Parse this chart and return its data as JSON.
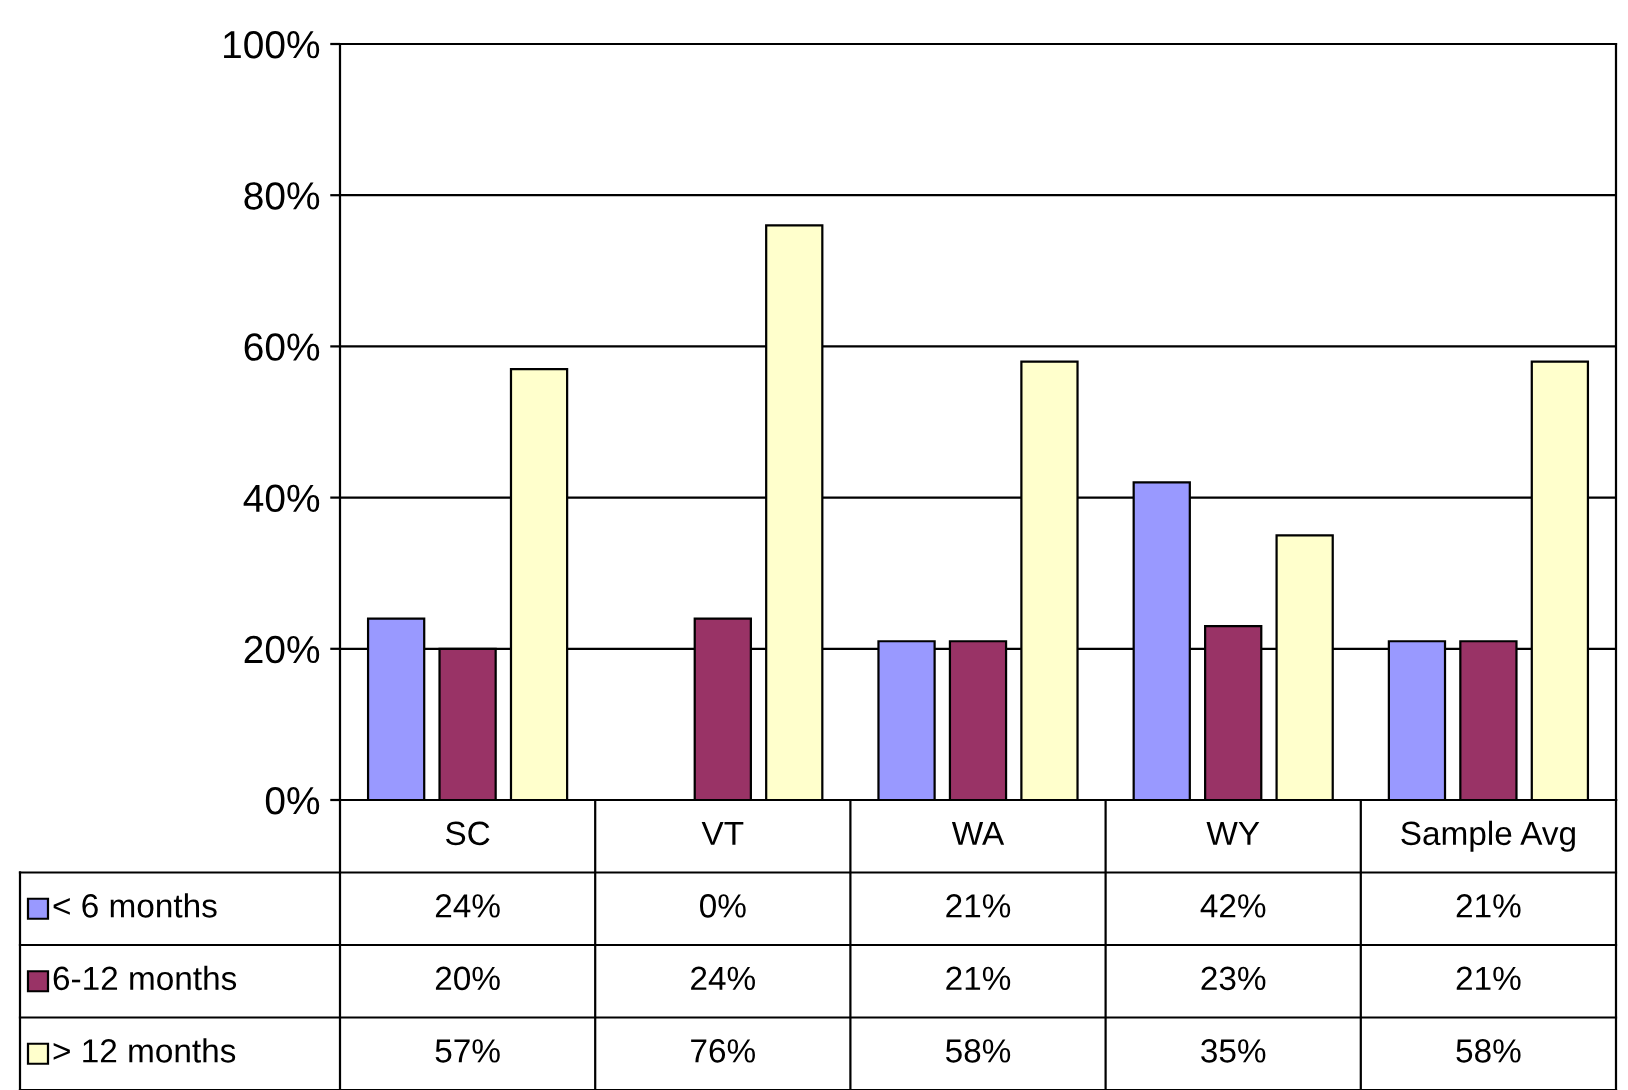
{
  "chart_data": {
    "type": "bar",
    "categories": [
      "SC",
      "VT",
      "WA",
      "WY",
      "Sample Avg"
    ],
    "series": [
      {
        "name": "< 6 months",
        "color": "#9999ff",
        "values": [
          24,
          0,
          21,
          42,
          21
        ],
        "value_labels": [
          "24%",
          "0%",
          "21%",
          "42%",
          "21%"
        ]
      },
      {
        "name": "6-12 months",
        "color": "#993366",
        "values": [
          20,
          24,
          21,
          23,
          21
        ],
        "value_labels": [
          "20%",
          "24%",
          "21%",
          "23%",
          "21%"
        ]
      },
      {
        "name": "> 12 months",
        "color": "#ffffcc",
        "values": [
          57,
          76,
          58,
          35,
          58
        ],
        "value_labels": [
          "57%",
          "76%",
          "58%",
          "35%",
          "58%"
        ]
      }
    ],
    "ylim": [
      0,
      100
    ],
    "yticks": [
      {
        "value": 0,
        "label": "0%"
      },
      {
        "value": 20,
        "label": "20%"
      },
      {
        "value": 40,
        "label": "40%"
      },
      {
        "value": 60,
        "label": "60%"
      },
      {
        "value": 80,
        "label": "80%"
      },
      {
        "value": 100,
        "label": "100%"
      }
    ],
    "grid": "y",
    "legend": "bottom left"
  }
}
